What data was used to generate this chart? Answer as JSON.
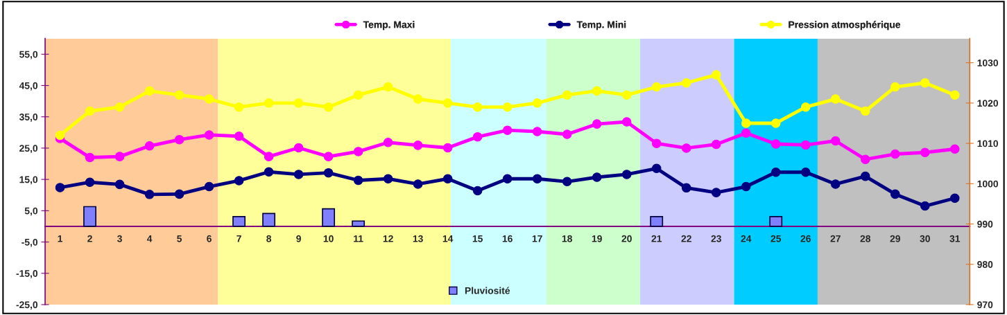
{
  "chart_data": {
    "type": "line",
    "x": [
      1,
      2,
      3,
      4,
      5,
      6,
      7,
      8,
      9,
      10,
      11,
      12,
      13,
      14,
      15,
      16,
      17,
      18,
      19,
      20,
      21,
      22,
      23,
      24,
      25,
      26,
      27,
      28,
      29,
      30,
      31
    ],
    "xlim": [
      0.5,
      31.5
    ],
    "xticks": [
      1,
      2,
      3,
      4,
      5,
      6,
      7,
      8,
      9,
      10,
      11,
      12,
      13,
      14,
      15,
      16,
      17,
      18,
      19,
      20,
      21,
      22,
      23,
      24,
      25,
      26,
      27,
      28,
      29,
      30,
      31
    ],
    "ylim": [
      -25,
      60
    ],
    "yticks": [
      {
        "value": -25,
        "label": "-25,0"
      },
      {
        "value": -15,
        "label": "-15,0"
      },
      {
        "value": -5,
        "label": "-5,0"
      },
      {
        "value": 5,
        "label": "5,0"
      },
      {
        "value": 15,
        "label": "15,0"
      },
      {
        "value": 25,
        "label": "25,0"
      },
      {
        "value": 35,
        "label": "35,0"
      },
      {
        "value": 45,
        "label": "45,0"
      },
      {
        "value": 55,
        "label": "55,0"
      }
    ],
    "y2lim": [
      970,
      1036
    ],
    "y2ticks": [
      970,
      980,
      990,
      1000,
      1010,
      1020,
      1030
    ],
    "marker": "circle",
    "legend": "top",
    "grid": false,
    "bands": [
      {
        "axis": "x",
        "from": 0.5,
        "to": 6.3,
        "color": "#ffcc99"
      },
      {
        "axis": "x",
        "from": 6.3,
        "to": 14.1,
        "color": "#ffff99"
      },
      {
        "axis": "x",
        "from": 14.1,
        "to": 17.3,
        "color": "#ccffff"
      },
      {
        "axis": "x",
        "from": 17.3,
        "to": 20.45,
        "color": "#ccffcc"
      },
      {
        "axis": "x",
        "from": 20.45,
        "to": 23.6,
        "color": "#ccccff"
      },
      {
        "axis": "x",
        "from": 23.6,
        "to": 26.4,
        "color": "#00ccff"
      },
      {
        "axis": "x",
        "from": 26.4,
        "to": 31.5,
        "color": "#c0c0c0"
      }
    ],
    "series": [
      {
        "name": "Pluviosité",
        "type": "bar",
        "color": "#8080ff",
        "values": [
          null,
          6.3,
          null,
          null,
          null,
          null,
          3.1,
          4.1,
          null,
          5.6,
          1.7,
          null,
          null,
          null,
          null,
          null,
          null,
          null,
          null,
          null,
          3.1,
          null,
          null,
          null,
          3.1,
          null,
          null,
          null,
          null,
          null,
          null
        ]
      },
      {
        "name": "Temp. Maxi",
        "color": "#ff00ff",
        "values": [
          28.1,
          22.0,
          22.3,
          25.7,
          27.7,
          29.2,
          28.8,
          22.3,
          25.1,
          22.3,
          23.9,
          26.8,
          25.9,
          25.1,
          28.6,
          30.7,
          30.3,
          29.4,
          32.7,
          33.4,
          26.5,
          25.0,
          26.2,
          29.8,
          26.3,
          26.0,
          27.3,
          21.4,
          23.1,
          23.6,
          24.7
        ]
      },
      {
        "name": "Temp. Mini",
        "color": "#000080",
        "values": [
          12.4,
          14.1,
          13.4,
          10.2,
          10.3,
          12.7,
          14.6,
          17.4,
          16.6,
          17.1,
          14.7,
          15.2,
          13.5,
          15.2,
          11.4,
          15.2,
          15.2,
          14.3,
          15.7,
          16.6,
          18.5,
          12.3,
          10.8,
          12.7,
          17.3,
          17.3,
          13.5,
          16.0,
          10.3,
          6.5,
          9.0
        ]
      },
      {
        "name": "Pression atmosphérique",
        "color": "#ffff00",
        "axis": "y2",
        "values": [
          1012,
          1018,
          1019,
          1023,
          1022,
          1021,
          1019,
          1020,
          1020,
          1019,
          1022,
          1024,
          1021,
          1020,
          1019,
          1019,
          1020,
          1022,
          1023,
          1022,
          1024,
          1025,
          1027,
          1015,
          1015,
          1019,
          1021,
          1018,
          1024,
          1025,
          1022
        ]
      }
    ]
  }
}
